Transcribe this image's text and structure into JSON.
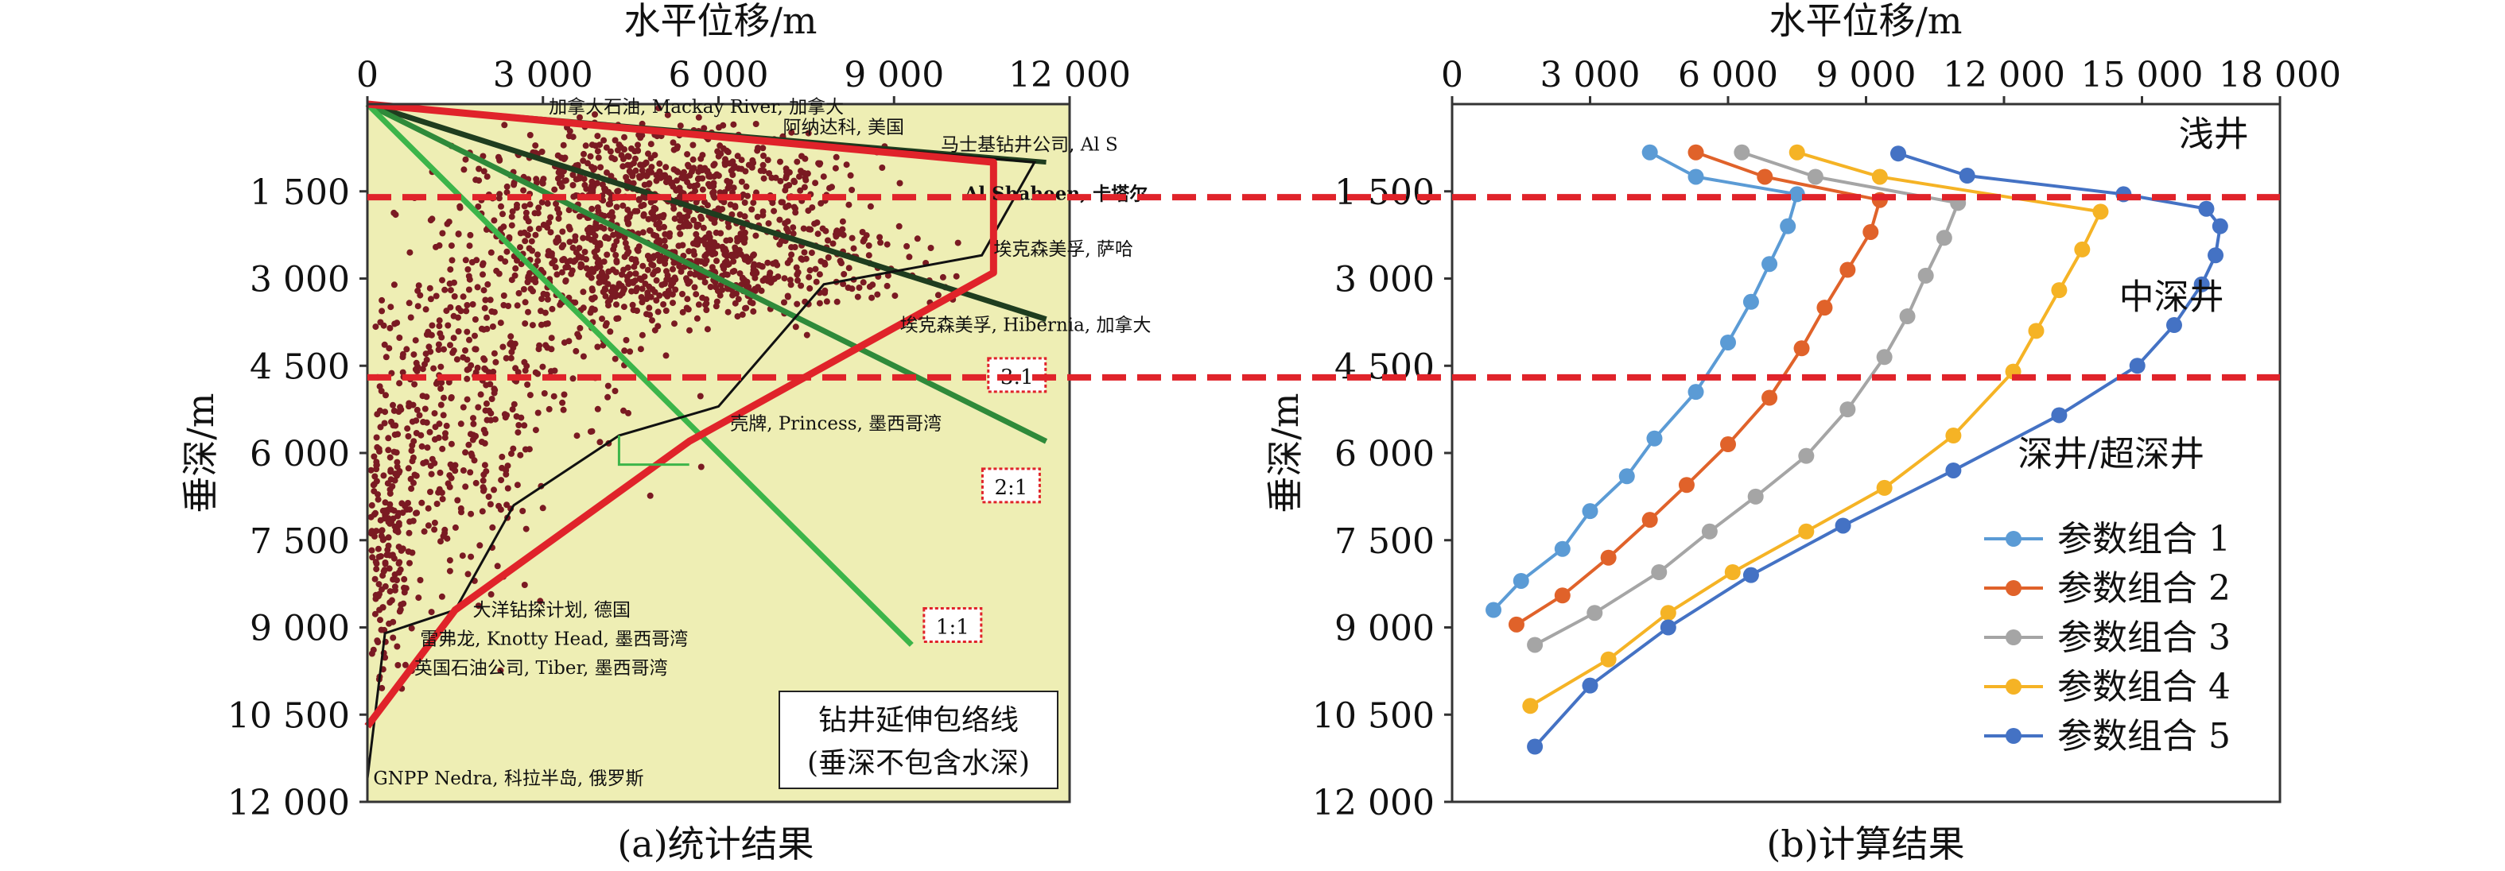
{
  "chart_data": [
    {
      "type": "scatter",
      "caption": "(a)统计结果",
      "xlabel": "水平位移/m",
      "ylabel": "垂深/m",
      "xlim": [
        0,
        12000
      ],
      "ylim": [
        0,
        12000
      ],
      "y_inverted": true,
      "x_ticks": [
        "0",
        "3 000",
        "6 000",
        "9 000",
        "12 000"
      ],
      "y_ticks": [
        "1 500",
        "3 000",
        "4 500",
        "6 000",
        "7 500",
        "9 000",
        "10 500",
        "12 000"
      ],
      "envelope_box": [
        "钻井延伸包络线",
        "(垂深不包含水深)"
      ],
      "ratio_lines": [
        {
          "label": "3:1",
          "points": [
            [
              0,
              0
            ],
            [
              11600,
              3700
            ]
          ]
        },
        {
          "label": "2:1",
          "points": [
            [
              0,
              0
            ],
            [
              11600,
              5800
            ]
          ]
        },
        {
          "label": "1:1",
          "points": [
            [
              0,
              0
            ],
            [
              9300,
              9300
            ]
          ]
        }
      ],
      "envelope_red": [
        [
          0,
          0
        ],
        [
          10700,
          1000
        ],
        [
          10700,
          2900
        ],
        [
          5500,
          5800
        ],
        [
          1500,
          8700
        ],
        [
          0,
          10700
        ]
      ],
      "envelope_black": [
        [
          0,
          0
        ],
        [
          11400,
          1000
        ],
        [
          10500,
          2600
        ],
        [
          7800,
          3100
        ],
        [
          6000,
          5200
        ],
        [
          4300,
          5700
        ],
        [
          2500,
          6900
        ],
        [
          1500,
          8700
        ],
        [
          300,
          9100
        ],
        [
          0,
          11600
        ]
      ],
      "annotations": [
        {
          "text": "加拿大石油, Mackay River, 加拿大",
          "x": 3100,
          "y": 150
        },
        {
          "text": "阿纳达科, 美国",
          "x": 7100,
          "y": 500
        },
        {
          "text": "马士基钻井公司, Al S",
          "x": 9800,
          "y": 800
        },
        {
          "text": "Al Shaheen, 卡塔尔",
          "x": 10200,
          "y": 1650
        },
        {
          "text": "埃克森美孚, 萨哈",
          "x": 10700,
          "y": 2600
        },
        {
          "text": "埃克森美孚, Hibernia, 加拿大",
          "x": 9100,
          "y": 3900
        },
        {
          "text": "壳牌, Princess, 墨西哥湾",
          "x": 6200,
          "y": 5600
        },
        {
          "text": "大洋钻探计划, 德国",
          "x": 1800,
          "y": 8800
        },
        {
          "text": "雷弗龙, Knotty Head, 墨西哥湾",
          "x": 900,
          "y": 9300
        },
        {
          "text": "英国石油公司, Tiber, 墨西哥湾",
          "x": 800,
          "y": 9800
        },
        {
          "text": "GNPP Nedra, 科拉半岛, 俄罗斯",
          "x": 100,
          "y": 11700
        }
      ],
      "dashed_lines_depth": [
        1600,
        4700
      ]
    },
    {
      "type": "line",
      "caption": "(b)计算结果",
      "xlabel": "水平位移/m",
      "ylabel": "垂深/m",
      "xlim": [
        0,
        18000
      ],
      "ylim": [
        0,
        12000
      ],
      "y_inverted": true,
      "x_ticks": [
        "0",
        "3 000",
        "6 000",
        "9 000",
        "12 000",
        "15 000",
        "18 000"
      ],
      "y_ticks": [
        "1 500",
        "3 000",
        "4 500",
        "6 000",
        "7 500",
        "9 000",
        "10 500",
        "12 000"
      ],
      "zones": [
        {
          "label": "浅井",
          "x": 15800,
          "y": 500
        },
        {
          "label": "中深井",
          "x": 14500,
          "y": 3300
        },
        {
          "label": "深井/超深井",
          "x": 12300,
          "y": 6000
        }
      ],
      "dashed_lines_depth": [
        1600,
        4700
      ],
      "legend_position": "bottom-right",
      "series": [
        {
          "name": "参数组合 1",
          "color": "#5b9bd5",
          "x": [
            4300,
            5300,
            7500,
            7300,
            6900,
            6500,
            6000,
            5300,
            4400,
            3800,
            3000,
            2400,
            1500,
            900
          ],
          "y": [
            830,
            1250,
            1550,
            2100,
            2750,
            3400,
            4100,
            4950,
            5750,
            6400,
            7000,
            7650,
            8200,
            8700
          ]
        },
        {
          "name": "参数组合 2",
          "color": "#e0622a",
          "x": [
            5300,
            6800,
            9300,
            9100,
            8600,
            8100,
            7600,
            6900,
            6000,
            5100,
            4300,
            3400,
            2400,
            1400
          ],
          "y": [
            830,
            1250,
            1650,
            2200,
            2850,
            3500,
            4200,
            5050,
            5850,
            6550,
            7150,
            7800,
            8450,
            8950
          ]
        },
        {
          "name": "参数组合 3",
          "color": "#a5a5a5",
          "x": [
            6300,
            7900,
            11000,
            10700,
            10300,
            9900,
            9400,
            8600,
            7700,
            6600,
            5600,
            4500,
            3100,
            1800
          ],
          "y": [
            830,
            1250,
            1700,
            2300,
            2950,
            3650,
            4350,
            5250,
            6050,
            6750,
            7350,
            8050,
            8750,
            9300
          ]
        },
        {
          "name": "参数组合 4",
          "color": "#f5b325",
          "x": [
            7500,
            9300,
            14100,
            13700,
            13200,
            12700,
            12200,
            10900,
            9400,
            7700,
            6100,
            4700,
            3400,
            1700
          ],
          "y": [
            830,
            1250,
            1850,
            2500,
            3200,
            3900,
            4600,
            5700,
            6600,
            7350,
            8050,
            8750,
            9550,
            10350
          ]
        },
        {
          "name": "参数组合 5",
          "color": "#4472c4",
          "x": [
            9700,
            11200,
            14600,
            16400,
            16700,
            16600,
            16300,
            15700,
            14900,
            13200,
            10900,
            8500,
            6500,
            4700,
            3000,
            1800
          ],
          "y": [
            850,
            1230,
            1550,
            1800,
            2100,
            2600,
            3100,
            3800,
            4500,
            5350,
            6300,
            7250,
            8100,
            9000,
            10000,
            11050
          ]
        }
      ]
    }
  ]
}
